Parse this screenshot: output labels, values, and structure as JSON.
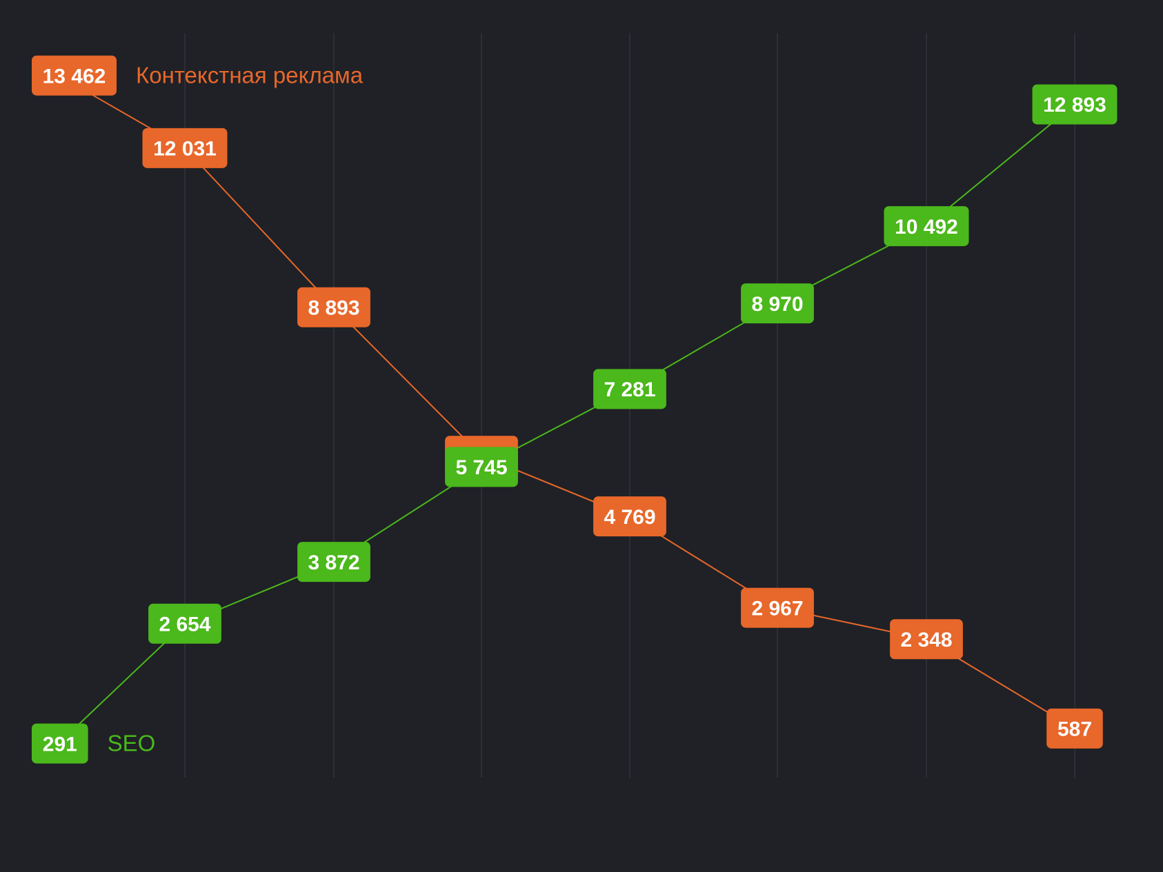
{
  "chart_data": {
    "type": "line",
    "x": [
      0,
      1,
      2,
      3,
      4,
      5,
      6,
      7
    ],
    "ylim": [
      0,
      14000
    ],
    "grid": true,
    "legend": "inline",
    "series": [
      {
        "name": "Контекстная реклама",
        "color": "#e8672a",
        "values": [
          13462,
          12031,
          8893,
          5964,
          4769,
          2967,
          2348,
          587
        ],
        "labels": [
          "13 462",
          "12 031",
          "8 893",
          "5 964",
          "4 769",
          "2 967",
          "2 348",
          "587"
        ]
      },
      {
        "name": "SEO",
        "color": "#4bb81b",
        "values": [
          291,
          2654,
          3872,
          5745,
          7281,
          8970,
          10492,
          12893
        ],
        "labels": [
          "291",
          "2 654",
          "3 872",
          "5 745",
          "7 281",
          "8 970",
          "10 492",
          "12 893"
        ]
      }
    ]
  }
}
